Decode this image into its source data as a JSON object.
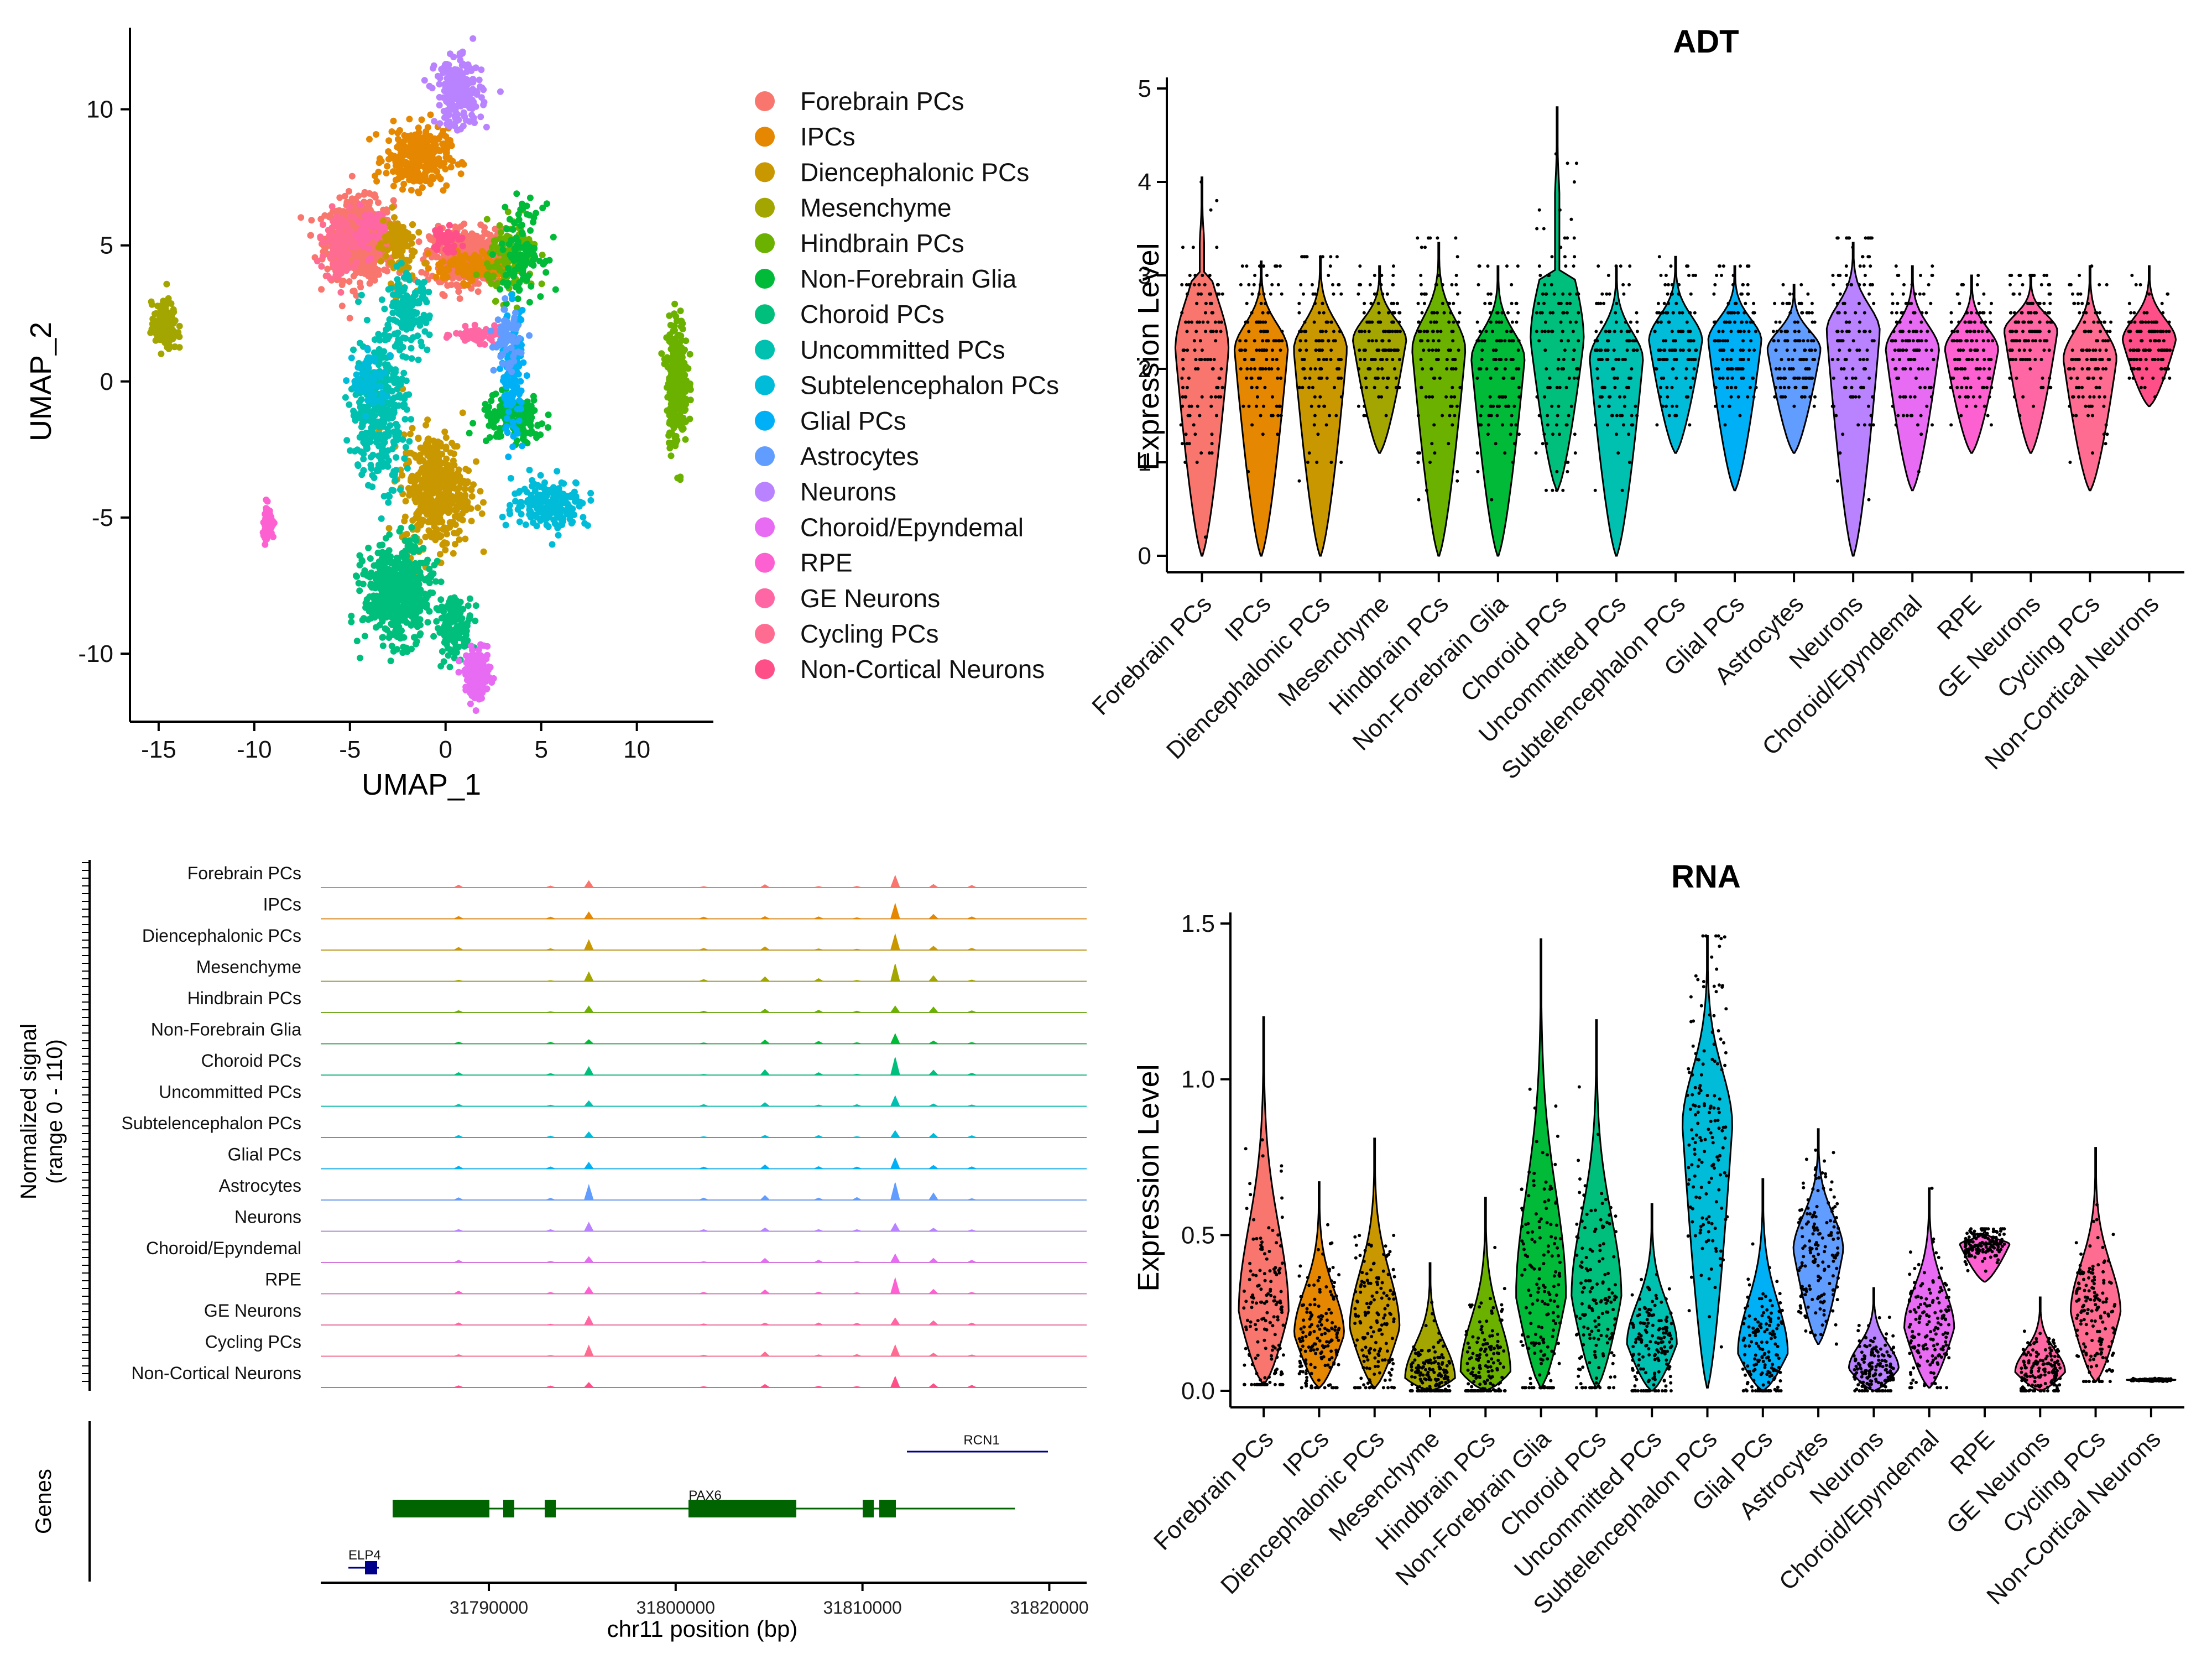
{
  "palette": [
    "#F8766D",
    "#E58700",
    "#C99800",
    "#A3A500",
    "#6BB100",
    "#00BA38",
    "#00BF7D",
    "#00C0AF",
    "#00BCD8",
    "#00B0F6",
    "#619CFF",
    "#B983FF",
    "#E76BF3",
    "#FD61D1",
    "#FF67A4",
    "#FF6C91",
    "#FF4F88"
  ],
  "umap": {
    "x_label": "UMAP_1",
    "y_label": "UMAP_2",
    "x_ticks": [
      "-15",
      "-10",
      "-5",
      "0",
      "5",
      "10"
    ],
    "y_ticks": [
      "-10",
      "-5",
      "0",
      "5",
      "10"
    ]
  },
  "legend": {
    "items": [
      "Forebrain PCs",
      "IPCs",
      "Diencephalonic PCs",
      "Mesenchyme",
      "Hindbrain PCs",
      "Non-Forebrain Glia",
      "Choroid PCs",
      "Uncommitted PCs",
      "Subtelencephalon PCs",
      "Glial PCs",
      "Astrocytes",
      "Neurons",
      "Choroid/Epyndemal",
      "RPE",
      "GE Neurons",
      "Cycling PCs",
      "Non-Cortical Neurons"
    ]
  },
  "coverage": {
    "y_label_line1": "Normalized signal",
    "y_label_line2": "(range 0 - 110)",
    "tracks": [
      "Forebrain PCs",
      "IPCs",
      "Diencephalonic PCs",
      "Mesenchyme",
      "Hindbrain PCs",
      "Non-Forebrain Glia",
      "Choroid PCs",
      "Uncommitted PCs",
      "Subtelencephalon PCs",
      "Glial PCs",
      "Astrocytes",
      "Neurons",
      "Choroid/Epyndemal",
      "RPE",
      "GE Neurons",
      "Cycling PCs",
      "Non-Cortical Neurons"
    ],
    "genes_label": "Genes",
    "x_label": "chr11 position (bp)",
    "x_ticks": [
      "31790000",
      "31800000",
      "31810000",
      "31820000"
    ],
    "gene_names": [
      "RCN1",
      "PAX6",
      "ELP4"
    ]
  },
  "chart_data": [
    {
      "type": "scatter",
      "xlabel": "UMAP_1",
      "ylabel": "UMAP_2",
      "xlim": [
        -16.5,
        14
      ],
      "ylim": [
        -12.5,
        13
      ],
      "series": [
        "Forebrain PCs",
        "IPCs",
        "Diencephalonic PCs",
        "Mesenchyme",
        "Hindbrain PCs",
        "Non-Forebrain Glia",
        "Choroid PCs",
        "Uncommitted PCs",
        "Subtelencephalon PCs",
        "Glial PCs",
        "Astrocytes",
        "Neurons",
        "Choroid/Epyndemal",
        "RPE",
        "GE Neurons",
        "Cycling PCs",
        "Non-Cortical Neurons"
      ],
      "legend": "right"
    },
    {
      "type": "violin",
      "title": "ADT",
      "ylabel": "Expression Level",
      "ylim": [
        0,
        5
      ],
      "y_ticks": [
        "0",
        "1",
        "2",
        "3",
        "4",
        "5"
      ],
      "categories": [
        "Forebrain PCs",
        "IPCs",
        "Diencephalonic PCs",
        "Mesenchyme",
        "Hindbrain PCs",
        "Non-Forebrain Glia",
        "Choroid PCs",
        "Uncommitted PCs",
        "Subtelencephalon PCs",
        "Glial PCs",
        "Astrocytes",
        "Neurons",
        "Choroid/Epyndemal",
        "RPE",
        "GE Neurons",
        "Cycling PCs",
        "Non-Cortical Neurons"
      ],
      "min": [
        0,
        0,
        0,
        1.1,
        0,
        0,
        0.7,
        0,
        1.1,
        0.7,
        1.1,
        0,
        0.7,
        1.1,
        1.1,
        0.7,
        1.6
      ],
      "max": [
        4.05,
        3.15,
        3.2,
        3.1,
        3.35,
        3.1,
        4.8,
        3.1,
        3.2,
        3.1,
        2.9,
        3.35,
        3.1,
        3.0,
        3.0,
        3.1,
        3.1
      ],
      "median": [
        2.2,
        2.2,
        2.2,
        2.3,
        2.2,
        2.1,
        2.3,
        2.1,
        2.3,
        2.3,
        2.2,
        2.4,
        2.2,
        2.2,
        2.4,
        2.1,
        2.3
      ]
    },
    {
      "type": "violin",
      "title": "RNA",
      "ylabel": "Expression Level",
      "ylim": [
        0,
        1.5
      ],
      "y_ticks": [
        "0.0",
        "0.5",
        "1.0",
        "1.5"
      ],
      "categories": [
        "Forebrain PCs",
        "IPCs",
        "Diencephalonic PCs",
        "Mesenchyme",
        "Hindbrain PCs",
        "Non-Forebrain Glia",
        "Choroid PCs",
        "Uncommitted PCs",
        "Subtelencephalon PCs",
        "Glial PCs",
        "Astrocytes",
        "Neurons",
        "Choroid/Epyndemal",
        "RPE",
        "GE Neurons",
        "Cycling PCs",
        "Non-Cortical Neurons"
      ],
      "min": [
        0.02,
        0.01,
        0.01,
        0.0,
        0.0,
        0.01,
        0.01,
        0.0,
        0.01,
        0.0,
        0.15,
        0.0,
        0.01,
        0.35,
        0.0,
        0.03,
        0.03
      ],
      "max": [
        1.2,
        0.67,
        0.81,
        0.41,
        0.62,
        1.45,
        1.19,
        0.6,
        1.46,
        0.68,
        0.84,
        0.33,
        0.65,
        0.52,
        0.3,
        0.78,
        0.04
      ],
      "median": [
        0.25,
        0.18,
        0.2,
        0.04,
        0.06,
        0.3,
        0.3,
        0.15,
        0.85,
        0.12,
        0.45,
        0.07,
        0.2,
        0.47,
        0.06,
        0.25,
        0.035
      ]
    }
  ]
}
